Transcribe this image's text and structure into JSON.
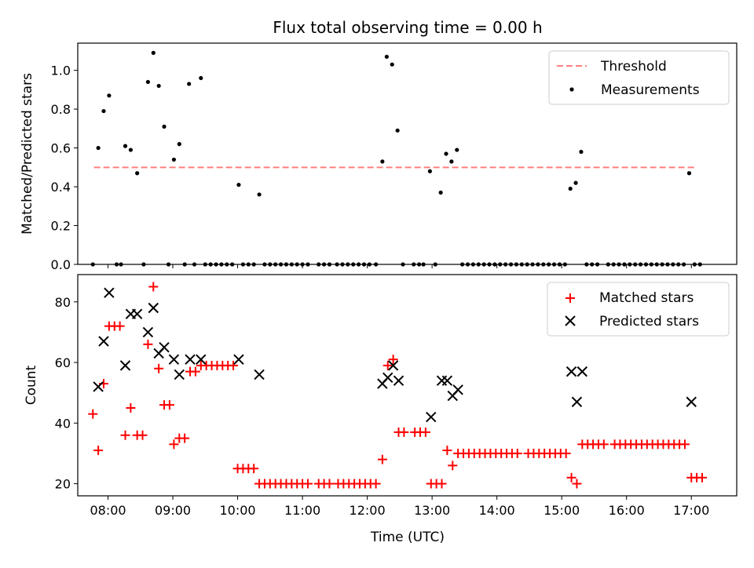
{
  "chart_data": [
    {
      "type": "scatter",
      "title": "Flux total observing time = 0.00 h",
      "ylabel": "Matched/Predicted stars",
      "xlabel": "",
      "xlim": [
        "07:32",
        "17:42"
      ],
      "ylim": [
        0,
        1.14
      ],
      "x_ticks": [
        "08:00",
        "09:00",
        "10:00",
        "11:00",
        "12:00",
        "13:00",
        "14:00",
        "15:00",
        "16:00",
        "17:00"
      ],
      "y_ticks": [
        "0.0",
        "0.2",
        "0.4",
        "0.6",
        "0.8",
        "1.0"
      ],
      "grid": false,
      "legend": "top-right",
      "threshold": {
        "name": "Threshold",
        "y": 0.5,
        "x_start": "07:47",
        "x_end": "17:03",
        "color": "#ff7f7f"
      },
      "series": [
        {
          "name": "Measurements",
          "color": "#000000",
          "points": [
            [
              "07:46",
              0
            ],
            [
              "07:51",
              0.6
            ],
            [
              "07:56",
              0.79
            ],
            [
              "08:01",
              0.87
            ],
            [
              "08:08",
              0
            ],
            [
              "08:12",
              0
            ],
            [
              "08:16",
              0.61
            ],
            [
              "08:21",
              0.59
            ],
            [
              "08:27",
              0.47
            ],
            [
              "08:33",
              0
            ],
            [
              "08:37",
              0.94
            ],
            [
              "08:42",
              1.09
            ],
            [
              "08:47",
              0.92
            ],
            [
              "08:52",
              0.71
            ],
            [
              "08:56",
              0
            ],
            [
              "09:01",
              0.54
            ],
            [
              "09:06",
              0.62
            ],
            [
              "09:11",
              0
            ],
            [
              "09:15",
              0.93
            ],
            [
              "09:20",
              0
            ],
            [
              "09:26",
              0.96
            ],
            [
              "09:30",
              0
            ],
            [
              "09:35",
              0
            ],
            [
              "09:40",
              0
            ],
            [
              "09:45",
              0
            ],
            [
              "09:50",
              0
            ],
            [
              "09:55",
              0
            ],
            [
              "10:01",
              0.41
            ],
            [
              "10:05",
              0
            ],
            [
              "10:10",
              0
            ],
            [
              "10:15",
              0
            ],
            [
              "10:20",
              0.36
            ],
            [
              "10:25",
              0
            ],
            [
              "10:30",
              0
            ],
            [
              "10:35",
              0
            ],
            [
              "10:40",
              0
            ],
            [
              "10:45",
              0
            ],
            [
              "10:50",
              0
            ],
            [
              "10:55",
              0
            ],
            [
              "11:00",
              0
            ],
            [
              "11:05",
              0
            ],
            [
              "11:15",
              0
            ],
            [
              "11:20",
              0
            ],
            [
              "11:25",
              0
            ],
            [
              "11:32",
              0
            ],
            [
              "11:37",
              0
            ],
            [
              "11:42",
              0
            ],
            [
              "11:47",
              0
            ],
            [
              "11:52",
              0
            ],
            [
              "11:57",
              0
            ],
            [
              "12:02",
              0
            ],
            [
              "12:08",
              0
            ],
            [
              "12:14",
              0.53
            ],
            [
              "12:18",
              1.07
            ],
            [
              "12:23",
              1.03
            ],
            [
              "12:28",
              0.69
            ],
            [
              "12:33",
              0
            ],
            [
              "12:43",
              0
            ],
            [
              "12:48",
              0
            ],
            [
              "12:52",
              0
            ],
            [
              "12:58",
              0.48
            ],
            [
              "13:03",
              0
            ],
            [
              "13:08",
              0.37
            ],
            [
              "13:13",
              0.57
            ],
            [
              "13:18",
              0.53
            ],
            [
              "13:23",
              0.59
            ],
            [
              "13:28",
              0
            ],
            [
              "13:33",
              0
            ],
            [
              "13:38",
              0
            ],
            [
              "13:43",
              0
            ],
            [
              "13:48",
              0
            ],
            [
              "13:53",
              0
            ],
            [
              "13:58",
              0
            ],
            [
              "14:03",
              0
            ],
            [
              "14:08",
              0
            ],
            [
              "14:13",
              0
            ],
            [
              "14:18",
              0
            ],
            [
              "14:23",
              0
            ],
            [
              "14:28",
              0
            ],
            [
              "14:33",
              0
            ],
            [
              "14:38",
              0
            ],
            [
              "14:43",
              0
            ],
            [
              "14:48",
              0
            ],
            [
              "14:53",
              0
            ],
            [
              "14:58",
              0
            ],
            [
              "15:03",
              0
            ],
            [
              "15:08",
              0.39
            ],
            [
              "15:13",
              0.42
            ],
            [
              "15:18",
              0.58
            ],
            [
              "15:23",
              0
            ],
            [
              "15:28",
              0
            ],
            [
              "15:33",
              0
            ],
            [
              "15:43",
              0
            ],
            [
              "15:48",
              0
            ],
            [
              "15:53",
              0
            ],
            [
              "15:58",
              0
            ],
            [
              "16:03",
              0
            ],
            [
              "16:08",
              0
            ],
            [
              "16:13",
              0
            ],
            [
              "16:18",
              0
            ],
            [
              "16:23",
              0
            ],
            [
              "16:28",
              0
            ],
            [
              "16:33",
              0
            ],
            [
              "16:38",
              0
            ],
            [
              "16:43",
              0
            ],
            [
              "16:48",
              0
            ],
            [
              "16:53",
              0
            ],
            [
              "16:58",
              0.47
            ],
            [
              "17:03",
              0
            ],
            [
              "17:08",
              0
            ]
          ]
        }
      ]
    },
    {
      "type": "scatter",
      "title": "",
      "ylabel": "Count",
      "xlabel": "Time (UTC)",
      "xlim": [
        "07:32",
        "17:42"
      ],
      "ylim": [
        16,
        89
      ],
      "x_ticks": [
        "08:00",
        "09:00",
        "10:00",
        "11:00",
        "12:00",
        "13:00",
        "14:00",
        "15:00",
        "16:00",
        "17:00"
      ],
      "y_ticks": [
        "20",
        "40",
        "60",
        "80"
      ],
      "grid": false,
      "legend": "top-right",
      "series": [
        {
          "name": "Matched stars",
          "marker": "plus",
          "color": "#ff0000",
          "points": [
            [
              "07:46",
              43
            ],
            [
              "07:51",
              31
            ],
            [
              "07:56",
              53
            ],
            [
              "08:01",
              72
            ],
            [
              "08:06",
              72
            ],
            [
              "08:11",
              72
            ],
            [
              "08:16",
              36
            ],
            [
              "08:21",
              45
            ],
            [
              "08:27",
              36
            ],
            [
              "08:32",
              36
            ],
            [
              "08:37",
              66
            ],
            [
              "08:42",
              85
            ],
            [
              "08:47",
              58
            ],
            [
              "08:52",
              46
            ],
            [
              "08:57",
              46
            ],
            [
              "09:01",
              33
            ],
            [
              "09:06",
              35
            ],
            [
              "09:11",
              35
            ],
            [
              "09:16",
              57
            ],
            [
              "09:21",
              57
            ],
            [
              "09:26",
              59
            ],
            [
              "09:31",
              59
            ],
            [
              "09:36",
              59
            ],
            [
              "09:41",
              59
            ],
            [
              "09:46",
              59
            ],
            [
              "09:51",
              59
            ],
            [
              "09:56",
              59
            ],
            [
              "10:00",
              25
            ],
            [
              "10:05",
              25
            ],
            [
              "10:10",
              25
            ],
            [
              "10:15",
              25
            ],
            [
              "10:20",
              20
            ],
            [
              "10:25",
              20
            ],
            [
              "10:30",
              20
            ],
            [
              "10:35",
              20
            ],
            [
              "10:40",
              20
            ],
            [
              "10:45",
              20
            ],
            [
              "10:50",
              20
            ],
            [
              "10:55",
              20
            ],
            [
              "11:00",
              20
            ],
            [
              "11:05",
              20
            ],
            [
              "11:15",
              20
            ],
            [
              "11:20",
              20
            ],
            [
              "11:25",
              20
            ],
            [
              "11:33",
              20
            ],
            [
              "11:38",
              20
            ],
            [
              "11:43",
              20
            ],
            [
              "11:48",
              20
            ],
            [
              "11:53",
              20
            ],
            [
              "11:58",
              20
            ],
            [
              "12:03",
              20
            ],
            [
              "12:08",
              20
            ],
            [
              "12:14",
              28
            ],
            [
              "12:19",
              59
            ],
            [
              "12:24",
              61
            ],
            [
              "12:29",
              37
            ],
            [
              "12:34",
              37
            ],
            [
              "12:44",
              37
            ],
            [
              "12:49",
              37
            ],
            [
              "12:54",
              37
            ],
            [
              "12:59",
              20
            ],
            [
              "13:04",
              20
            ],
            [
              "13:09",
              20
            ],
            [
              "13:14",
              31
            ],
            [
              "13:19",
              26
            ],
            [
              "13:24",
              30
            ],
            [
              "13:29",
              30
            ],
            [
              "13:34",
              30
            ],
            [
              "13:39",
              30
            ],
            [
              "13:44",
              30
            ],
            [
              "13:49",
              30
            ],
            [
              "13:54",
              30
            ],
            [
              "13:59",
              30
            ],
            [
              "14:04",
              30
            ],
            [
              "14:09",
              30
            ],
            [
              "14:14",
              30
            ],
            [
              "14:19",
              30
            ],
            [
              "14:29",
              30
            ],
            [
              "14:34",
              30
            ],
            [
              "14:39",
              30
            ],
            [
              "14:44",
              30
            ],
            [
              "14:49",
              30
            ],
            [
              "14:54",
              30
            ],
            [
              "14:59",
              30
            ],
            [
              "15:04",
              30
            ],
            [
              "15:09",
              22
            ],
            [
              "15:14",
              20
            ],
            [
              "15:19",
              33
            ],
            [
              "15:24",
              33
            ],
            [
              "15:29",
              33
            ],
            [
              "15:34",
              33
            ],
            [
              "15:39",
              33
            ],
            [
              "15:49",
              33
            ],
            [
              "15:54",
              33
            ],
            [
              "15:59",
              33
            ],
            [
              "16:04",
              33
            ],
            [
              "16:09",
              33
            ],
            [
              "16:14",
              33
            ],
            [
              "16:19",
              33
            ],
            [
              "16:24",
              33
            ],
            [
              "16:29",
              33
            ],
            [
              "16:34",
              33
            ],
            [
              "16:39",
              33
            ],
            [
              "16:44",
              33
            ],
            [
              "16:49",
              33
            ],
            [
              "16:54",
              33
            ],
            [
              "17:00",
              22
            ],
            [
              "17:05",
              22
            ],
            [
              "17:10",
              22
            ]
          ]
        },
        {
          "name": "Predicted stars",
          "marker": "x",
          "color": "#000000",
          "points": [
            [
              "07:51",
              52
            ],
            [
              "07:56",
              67
            ],
            [
              "08:01",
              83
            ],
            [
              "08:16",
              59
            ],
            [
              "08:21",
              76
            ],
            [
              "08:27",
              76
            ],
            [
              "08:37",
              70
            ],
            [
              "08:42",
              78
            ],
            [
              "08:47",
              63
            ],
            [
              "08:52",
              65
            ],
            [
              "09:01",
              61
            ],
            [
              "09:06",
              56
            ],
            [
              "09:16",
              61
            ],
            [
              "09:26",
              61
            ],
            [
              "10:01",
              61
            ],
            [
              "10:20",
              56
            ],
            [
              "12:14",
              53
            ],
            [
              "12:19",
              55
            ],
            [
              "12:24",
              59
            ],
            [
              "12:29",
              54
            ],
            [
              "12:59",
              42
            ],
            [
              "13:09",
              54
            ],
            [
              "13:14",
              54
            ],
            [
              "13:19",
              49
            ],
            [
              "13:24",
              51
            ],
            [
              "15:09",
              57
            ],
            [
              "15:14",
              47
            ],
            [
              "15:19",
              57
            ],
            [
              "17:00",
              47
            ]
          ]
        }
      ]
    }
  ]
}
